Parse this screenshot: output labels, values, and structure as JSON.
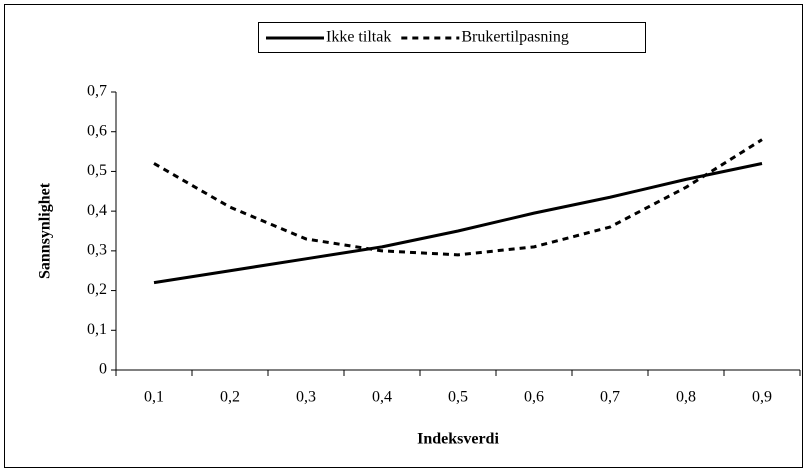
{
  "chart_data": {
    "type": "line",
    "x_label": "Indeksverdi",
    "y_label": "Sannsynlighet",
    "categories": [
      "0,1",
      "0,2",
      "0,3",
      "0,4",
      "0,5",
      "0,6",
      "0,7",
      "0,8",
      "0,9"
    ],
    "series": [
      {
        "name": "Ikke tiltak",
        "color": "#000000",
        "dash": false,
        "values": [
          0.22,
          0.25,
          0.28,
          0.31,
          0.35,
          0.395,
          0.435,
          0.48,
          0.52
        ]
      },
      {
        "name": "Brukertilpasning",
        "color": "#000000",
        "dash": true,
        "values": [
          0.52,
          0.41,
          0.33,
          0.3,
          0.29,
          0.31,
          0.36,
          0.46,
          0.58
        ]
      }
    ],
    "ylim": [
      0,
      0.7
    ],
    "yticks": [
      0,
      {
        "value": 0.1,
        "label": "0,1"
      },
      {
        "value": 0.2,
        "label": "0,2"
      },
      {
        "value": 0.3,
        "label": "0,3"
      },
      {
        "value": 0.4,
        "label": "0,4"
      },
      {
        "value": 0.5,
        "label": "0,5"
      },
      {
        "value": 0.6,
        "label": "0,6"
      },
      {
        "value": 0.7,
        "label": "0,7"
      }
    ],
    "grid": false,
    "legend": "top"
  }
}
